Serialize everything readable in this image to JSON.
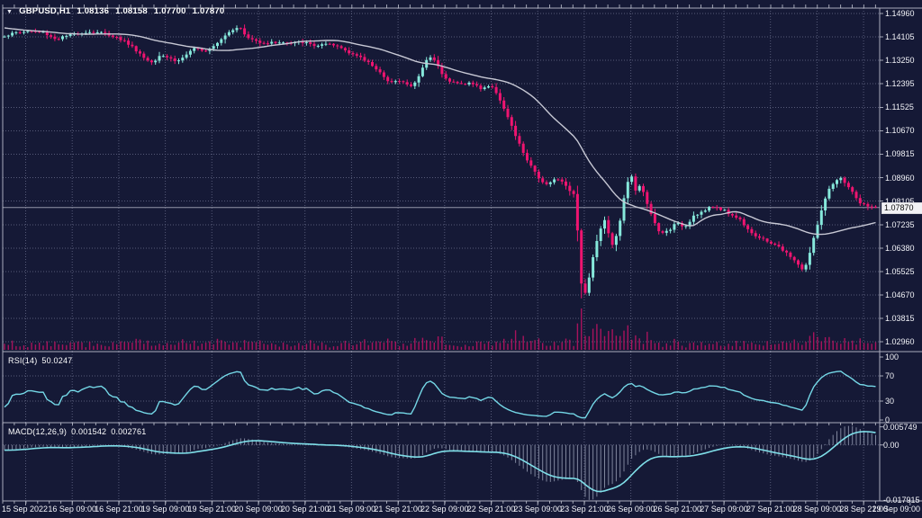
{
  "header": {
    "dropdown_icon": "▼",
    "symbol": "GBPUSD,H1",
    "open": "1.08136",
    "high": "1.08158",
    "low": "1.07700",
    "close": "1.07870"
  },
  "price_axis": {
    "ticks": [
      "1.14960",
      "1.14105",
      "1.13250",
      "1.12395",
      "1.11525",
      "1.10670",
      "1.09815",
      "1.08960",
      "1.08105",
      "1.07235",
      "1.06380",
      "1.05525",
      "1.04670",
      "1.03815",
      "1.02960"
    ],
    "current_price_label": "1.07870"
  },
  "time_axis": {
    "labels": [
      "15 Sep 2022",
      "16 Sep 09:00",
      "16 Sep 21:00",
      "19 Sep 09:00",
      "19 Sep 21:00",
      "20 Sep 09:00",
      "20 Sep 21:00",
      "21 Sep 09:00",
      "21 Sep 21:00",
      "22 Sep 09:00",
      "22 Sep 21:00",
      "23 Sep 09:00",
      "23 Sep 21:00",
      "26 Sep 09:00",
      "26 Sep 21:00",
      "27 Sep 09:00",
      "27 Sep 21:00",
      "28 Sep 09:00",
      "28 Sep 21:00",
      "29 Sep 09:00"
    ]
  },
  "rsi_panel": {
    "label": "RSI(14)",
    "value": "50.0247",
    "ticks": [
      "100",
      "70",
      "30",
      "0"
    ],
    "levels": [
      70,
      30
    ]
  },
  "macd_panel": {
    "label": "MACD(12,26,9)",
    "macd_value": "0.001542",
    "signal_value": "0.002761",
    "ticks": [
      "0.005749",
      "0.00",
      "-0.017915"
    ]
  },
  "colors": {
    "background": "#151936",
    "grid": "#5d6280",
    "bull_candle": "#86e8db",
    "bear_candle": "#ef1470",
    "volume": "#b0135f",
    "ma_line": "#c7c8d4",
    "rsi_line": "#74d7e6",
    "macd_signal_line": "#7fdfe9",
    "macd_histogram": "#9aa0b6",
    "separator": "#c3c6d3",
    "axis_text": "#f2f3f8",
    "price_box_bg": "#f2f2f5"
  },
  "chart_data": {
    "type": "candlestick",
    "title": "GBPUSD,H1",
    "symbol": "GBPUSD",
    "timeframe": "H1",
    "last_bar_ohlc": {
      "open": 1.08136,
      "high": 1.08158,
      "low": 1.077,
      "close": 1.0787
    },
    "current_price": 1.0787,
    "y_axis": {
      "ticks": [
        1.1496,
        1.14105,
        1.1325,
        1.12395,
        1.11525,
        1.1067,
        1.09815,
        1.0896,
        1.08105,
        1.07235,
        1.0638,
        1.05525,
        1.0467,
        1.03815,
        1.0296
      ],
      "top": 1.1496,
      "bottom": 1.0296
    },
    "x_axis": {
      "labels_from": "time_axis",
      "candles_per_gridline": 12,
      "gridline_hours": 12
    },
    "series": {
      "close_anchors": [
        [
          5,
          1.1415
        ],
        [
          18,
          1.1426
        ],
        [
          32,
          1.1432
        ],
        [
          48,
          1.1428
        ],
        [
          62,
          1.1402
        ],
        [
          72,
          1.1412
        ],
        [
          82,
          1.142
        ],
        [
          95,
          1.1428
        ],
        [
          110,
          1.1428
        ],
        [
          125,
          1.1415
        ],
        [
          140,
          1.1392
        ],
        [
          152,
          1.136
        ],
        [
          162,
          1.1328
        ],
        [
          170,
          1.1318
        ],
        [
          178,
          1.1348
        ],
        [
          188,
          1.1334
        ],
        [
          197,
          1.132
        ],
        [
          207,
          1.1346
        ],
        [
          217,
          1.1368
        ],
        [
          230,
          1.1362
        ],
        [
          243,
          1.1396
        ],
        [
          255,
          1.1432
        ],
        [
          265,
          1.145
        ],
        [
          274,
          1.1408
        ],
        [
          286,
          1.1394
        ],
        [
          298,
          1.1388
        ],
        [
          310,
          1.1392
        ],
        [
          322,
          1.1386
        ],
        [
          336,
          1.1392
        ],
        [
          350,
          1.1378
        ],
        [
          363,
          1.1382
        ],
        [
          376,
          1.1375
        ],
        [
          390,
          1.1352
        ],
        [
          401,
          1.1332
        ],
        [
          411,
          1.1314
        ],
        [
          421,
          1.1286
        ],
        [
          430,
          1.1244
        ],
        [
          439,
          1.1254
        ],
        [
          449,
          1.1242
        ],
        [
          457,
          1.1228
        ],
        [
          465,
          1.1264
        ],
        [
          473,
          1.1326
        ],
        [
          481,
          1.1338
        ],
        [
          489,
          1.1286
        ],
        [
          499,
          1.1248
        ],
        [
          511,
          1.1238
        ],
        [
          523,
          1.1242
        ],
        [
          534,
          1.1222
        ],
        [
          544,
          1.1232
        ],
        [
          552,
          1.1206
        ],
        [
          560,
          1.1146
        ],
        [
          569,
          1.1076
        ],
        [
          578,
          1.1008
        ],
        [
          588,
          1.0944
        ],
        [
          598,
          1.0896
        ],
        [
          607,
          1.0872
        ],
        [
          615,
          1.0892
        ],
        [
          623,
          1.0884
        ],
        [
          631,
          1.0858
        ],
        [
          639,
          1.0828
        ],
        [
          645,
          1.052
        ],
        [
          650,
          1.0472
        ],
        [
          656,
          1.056
        ],
        [
          662,
          1.0658
        ],
        [
          668,
          1.0714
        ],
        [
          673,
          1.0758
        ],
        [
          678,
          1.0646
        ],
        [
          683,
          1.0662
        ],
        [
          689,
          1.0744
        ],
        [
          695,
          1.0854
        ],
        [
          700,
          1.0916
        ],
        [
          706,
          1.0844
        ],
        [
          712,
          1.0878
        ],
        [
          718,
          1.0804
        ],
        [
          725,
          1.0744
        ],
        [
          733,
          1.069
        ],
        [
          742,
          1.0702
        ],
        [
          751,
          1.0728
        ],
        [
          761,
          1.0718
        ],
        [
          771,
          1.076
        ],
        [
          781,
          1.0772
        ],
        [
          791,
          1.079
        ],
        [
          801,
          1.0782
        ],
        [
          811,
          1.0762
        ],
        [
          821,
          1.0746
        ],
        [
          831,
          1.0708
        ],
        [
          841,
          1.0678
        ],
        [
          851,
          1.0664
        ],
        [
          861,
          1.0652
        ],
        [
          871,
          1.0624
        ],
        [
          880,
          1.0604
        ],
        [
          887,
          1.0574
        ],
        [
          893,
          1.0556
        ],
        [
          899,
          1.0616
        ],
        [
          906,
          1.07
        ],
        [
          913,
          1.0786
        ],
        [
          920,
          1.0846
        ],
        [
          927,
          1.088
        ],
        [
          934,
          1.0892
        ],
        [
          941,
          1.087
        ],
        [
          948,
          1.0834
        ],
        [
          955,
          1.0804
        ],
        [
          962,
          1.079
        ],
        [
          972,
          1.0787
        ]
      ],
      "crash_low": 1.0385
    },
    "overlays": [
      {
        "name": "moving-average",
        "type": "sma",
        "period": 30
      }
    ],
    "panels": [
      {
        "name": "RSI",
        "params": [
          14
        ],
        "current_value": 50.0247,
        "range": [
          0,
          100
        ],
        "levels": [
          70,
          30
        ]
      },
      {
        "name": "MACD",
        "params": [
          12,
          26,
          9
        ],
        "macd_value": 0.001542,
        "signal_value": 0.002761,
        "axis_max": 0.005749,
        "axis_min": -0.017915
      }
    ],
    "volume_histogram": true
  }
}
